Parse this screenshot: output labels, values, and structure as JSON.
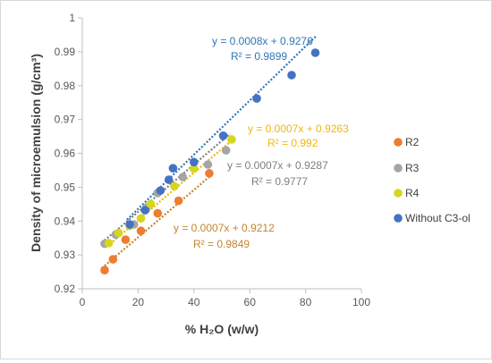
{
  "chart_data": {
    "type": "scatter",
    "xlabel": "% H₂O (w/w)",
    "ylabel": "Density of microemulsion (g/cm³)",
    "xlim": [
      0,
      100
    ],
    "ylim": [
      0.92,
      1.0
    ],
    "x_ticks": [
      "0",
      "20",
      "40",
      "60",
      "80",
      "100"
    ],
    "y_ticks": [
      "0.92",
      "0.93",
      "0.94",
      "0.95",
      "0.96",
      "0.97",
      "0.98",
      "0.99",
      "1"
    ],
    "grid": false,
    "legend_position": "right",
    "series": [
      {
        "name": "R2",
        "color": "#ED7D31",
        "trend_color": "#C0862E",
        "x": [
          8,
          11,
          15.5,
          21,
          27,
          34.5,
          45.5
        ],
        "y": [
          0.9255,
          0.9287,
          0.9345,
          0.9371,
          0.9423,
          0.946,
          0.9541
        ],
        "trendline": {
          "slope": 0.0007,
          "intercept": 0.9212,
          "x_range": [
            7,
            47
          ]
        },
        "equation": "y = 0.0007x + 0.9212",
        "r2": "R² = 0.9849"
      },
      {
        "name": "R3",
        "color": "#A5A5A5",
        "trend_color": "#7F7F7F",
        "x": [
          8,
          12,
          18.5,
          23,
          27,
          36,
          45,
          51.5
        ],
        "y": [
          0.9333,
          0.936,
          0.939,
          0.944,
          0.9483,
          0.953,
          0.9567,
          0.9609
        ],
        "trendline": {
          "slope": 0.0007,
          "intercept": 0.9287,
          "x_range": [
            7,
            53
          ]
        },
        "equation": "y = 0.0007x + 0.9287",
        "r2": "R² = 0.9777"
      },
      {
        "name": "R4",
        "color": "#D6D61E",
        "trend_color": "#F2B705",
        "x": [
          9.5,
          13,
          17,
          21,
          24.5,
          33,
          40,
          53.5
        ],
        "y": [
          0.9335,
          0.9365,
          0.9386,
          0.9408,
          0.945,
          0.9503,
          0.9555,
          0.9641
        ],
        "trendline": {
          "slope": 0.0007,
          "intercept": 0.9263,
          "x_range": [
            9,
            54
          ]
        },
        "equation": "y = 0.0007x + 0.9263",
        "r2": "R² = 0.992"
      },
      {
        "name": "Without C3-ol",
        "color": "#4472C4",
        "trend_color": "#2E75B6",
        "x": [
          17,
          22.5,
          28,
          31,
          32.5,
          40,
          50.5,
          62.5,
          75,
          83.5
        ],
        "y": [
          0.939,
          0.9432,
          0.949,
          0.9522,
          0.9556,
          0.9574,
          0.9652,
          0.9762,
          0.9831,
          0.9897
        ],
        "trendline": {
          "slope": 0.0008,
          "intercept": 0.9276,
          "x_range": [
            16,
            84
          ]
        },
        "equation": "y = 0.0008x + 0.9276",
        "r2": "R² = 0.9899"
      }
    ]
  }
}
